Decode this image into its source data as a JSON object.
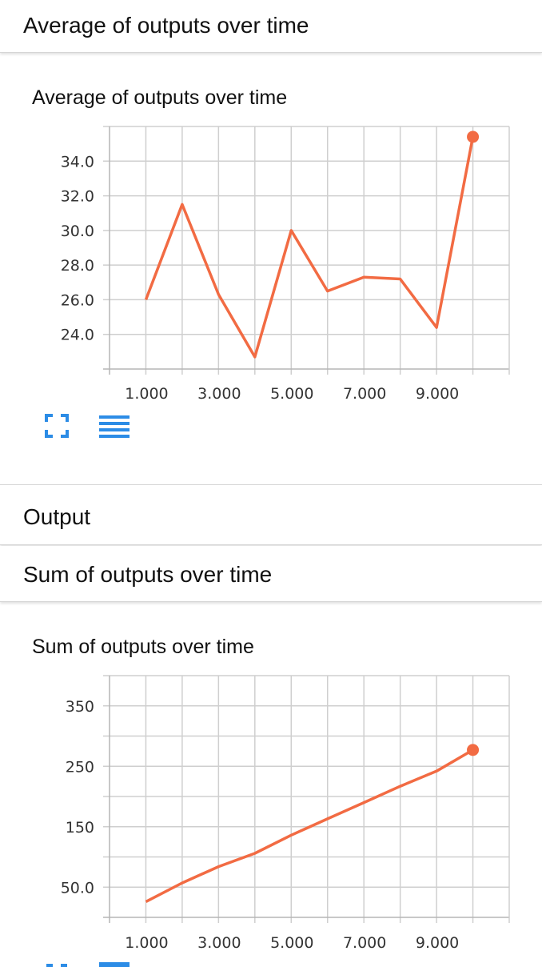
{
  "sections": {
    "avg_header": "Average of outputs over time",
    "output_header": "Output",
    "sum_header": "Sum of outputs over time"
  },
  "colors": {
    "series": "#f26b43",
    "toolbar_icon": "#2c8ce6"
  },
  "icons": {
    "fullscreen": "fullscreen-icon",
    "menu": "menu-icon"
  },
  "chart_data": [
    {
      "type": "line",
      "title": "Average of outputs over time",
      "xlabel": "",
      "ylabel": "",
      "x": [
        1,
        2,
        3,
        4,
        5,
        6,
        7,
        8,
        9,
        10
      ],
      "series": [
        {
          "values": [
            26.0,
            31.5,
            26.3,
            22.7,
            30.0,
            26.5,
            27.3,
            27.2,
            24.4,
            35.4
          ]
        }
      ],
      "xlim": [
        0,
        11
      ],
      "ylim": [
        22.0,
        36.0
      ],
      "x_ticks": [
        1,
        3,
        5,
        7,
        9
      ],
      "x_tick_labels": [
        "1.000",
        "3.000",
        "5.000",
        "7.000",
        "9.000"
      ],
      "y_ticks": [
        24,
        26,
        28,
        30,
        32,
        34
      ],
      "y_tick_labels": [
        "24.0",
        "26.0",
        "28.0",
        "30.0",
        "32.0",
        "34.0"
      ],
      "grid": true
    },
    {
      "type": "line",
      "title": "Sum of outputs over time",
      "xlabel": "",
      "ylabel": "",
      "x": [
        1,
        2,
        3,
        4,
        5,
        6,
        7,
        8,
        9,
        10
      ],
      "series": [
        {
          "values": [
            26,
            57,
            84,
            106,
            136,
            163,
            190,
            217,
            242,
            277
          ]
        }
      ],
      "xlim": [
        0,
        11
      ],
      "ylim": [
        0,
        400
      ],
      "x_ticks": [
        1,
        3,
        5,
        7,
        9
      ],
      "x_tick_labels": [
        "1.000",
        "3.000",
        "5.000",
        "7.000",
        "9.000"
      ],
      "y_ticks": [
        50,
        150,
        250,
        350
      ],
      "y_tick_labels": [
        "50.0",
        "150",
        "250",
        "350"
      ],
      "grid": true
    }
  ]
}
